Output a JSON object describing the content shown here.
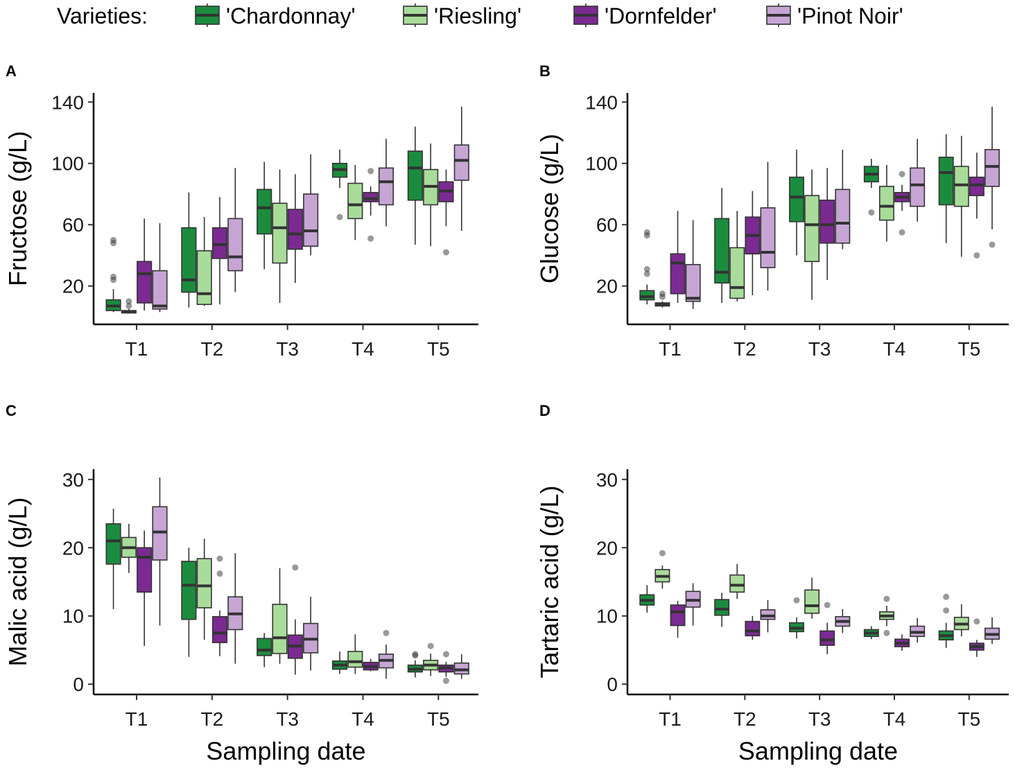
{
  "legend": {
    "title": "Varieties:",
    "items": [
      {
        "label": "'Chardonnay'",
        "color": "#1b8c3e"
      },
      {
        "label": "'Riesling'",
        "color": "#a9dc9b"
      },
      {
        "label": "'Dornfelder'",
        "color": "#7b2a92"
      },
      {
        "label": "'Pinot Noir'",
        "color": "#c6a5d4"
      }
    ]
  },
  "chart_data": [
    {
      "type": "boxplot",
      "panel": "A",
      "ylabel": "Fructose (g/L)",
      "xlabel": "",
      "ylim": [
        -5,
        146
      ],
      "yticks": [
        20,
        60,
        100,
        140
      ],
      "categories": [
        "T1",
        "T2",
        "T3",
        "T4",
        "T5"
      ],
      "series": [
        {
          "name": "'Chardonnay'",
          "boxes": [
            {
              "min": 3,
              "q1": 4,
              "median": 7,
              "q3": 11,
              "max": 18,
              "outliers": [
                24,
                26,
                48,
                50
              ]
            },
            {
              "min": 6,
              "q1": 16,
              "median": 24,
              "q3": 58,
              "max": 81,
              "outliers": []
            },
            {
              "min": 31,
              "q1": 54,
              "median": 71,
              "q3": 83,
              "max": 101,
              "outliers": []
            },
            {
              "min": 84,
              "q1": 91,
              "median": 96,
              "q3": 100,
              "max": 109,
              "outliers": [
                65
              ]
            },
            {
              "min": 47,
              "q1": 76,
              "median": 97,
              "q3": 108,
              "max": 124,
              "outliers": []
            }
          ]
        },
        {
          "name": "'Riesling'",
          "boxes": [
            {
              "min": 2,
              "q1": 2.5,
              "median": 3,
              "q3": 4,
              "max": 5,
              "outliers": [
                7,
                10
              ]
            },
            {
              "min": 7,
              "q1": 8,
              "median": 15,
              "q3": 43,
              "max": 65,
              "outliers": []
            },
            {
              "min": 9,
              "q1": 35,
              "median": 58,
              "q3": 74,
              "max": 96,
              "outliers": []
            },
            {
              "min": 50,
              "q1": 64,
              "median": 73,
              "q3": 87,
              "max": 99,
              "outliers": []
            },
            {
              "min": 46,
              "q1": 73,
              "median": 85,
              "q3": 96,
              "max": 113,
              "outliers": []
            }
          ]
        },
        {
          "name": "'Dornfelder'",
          "boxes": [
            {
              "min": 4,
              "q1": 9,
              "median": 28,
              "q3": 36,
              "max": 64,
              "outliers": []
            },
            {
              "min": 8,
              "q1": 38,
              "median": 47,
              "q3": 58,
              "max": 78,
              "outliers": []
            },
            {
              "min": 22,
              "q1": 44,
              "median": 54,
              "q3": 70,
              "max": 93,
              "outliers": []
            },
            {
              "min": 66,
              "q1": 75,
              "median": 77,
              "q3": 81,
              "max": 85,
              "outliers": [
                51,
                95
              ]
            },
            {
              "min": 59,
              "q1": 75,
              "median": 82,
              "q3": 88,
              "max": 96,
              "outliers": [
                42
              ]
            }
          ]
        },
        {
          "name": "'Pinot Noir'",
          "boxes": [
            {
              "min": 3,
              "q1": 5,
              "median": 7,
              "q3": 30,
              "max": 61,
              "outliers": []
            },
            {
              "min": 16,
              "q1": 30,
              "median": 39,
              "q3": 64,
              "max": 97,
              "outliers": []
            },
            {
              "min": 40,
              "q1": 46,
              "median": 56,
              "q3": 80,
              "max": 106,
              "outliers": []
            },
            {
              "min": 59,
              "q1": 73,
              "median": 88,
              "q3": 97,
              "max": 116,
              "outliers": []
            },
            {
              "min": 56,
              "q1": 89,
              "median": 102,
              "q3": 112,
              "max": 137,
              "outliers": []
            }
          ]
        }
      ]
    },
    {
      "type": "boxplot",
      "panel": "B",
      "ylabel": "Glucose (g/L)",
      "xlabel": "",
      "ylim": [
        -5,
        146
      ],
      "yticks": [
        20,
        60,
        100,
        140
      ],
      "categories": [
        "T1",
        "T2",
        "T3",
        "T4",
        "T5"
      ],
      "series": [
        {
          "name": "'Chardonnay'",
          "boxes": [
            {
              "min": 8,
              "q1": 11,
              "median": 13,
              "q3": 17,
              "max": 21,
              "outliers": [
                28,
                31,
                53,
                55
              ]
            },
            {
              "min": 9,
              "q1": 22,
              "median": 29,
              "q3": 64,
              "max": 84,
              "outliers": []
            },
            {
              "min": 40,
              "q1": 62,
              "median": 78,
              "q3": 91,
              "max": 109,
              "outliers": []
            },
            {
              "min": 84,
              "q1": 88,
              "median": 93,
              "q3": 98,
              "max": 103,
              "outliers": [
                68
              ]
            },
            {
              "min": 48,
              "q1": 73,
              "median": 94,
              "q3": 104,
              "max": 119,
              "outliers": []
            }
          ]
        },
        {
          "name": "'Riesling'",
          "boxes": [
            {
              "min": 6,
              "q1": 7,
              "median": 8,
              "q3": 9,
              "max": 10,
              "outliers": [
                13,
                15
              ]
            },
            {
              "min": 10,
              "q1": 12,
              "median": 19,
              "q3": 45,
              "max": 69,
              "outliers": []
            },
            {
              "min": 11,
              "q1": 36,
              "median": 60,
              "q3": 79,
              "max": 96,
              "outliers": []
            },
            {
              "min": 49,
              "q1": 63,
              "median": 72,
              "q3": 85,
              "max": 99,
              "outliers": []
            },
            {
              "min": 39,
              "q1": 72,
              "median": 86,
              "q3": 98,
              "max": 118,
              "outliers": []
            }
          ]
        },
        {
          "name": "'Dornfelder'",
          "boxes": [
            {
              "min": 9,
              "q1": 15,
              "median": 35,
              "q3": 41,
              "max": 69,
              "outliers": []
            },
            {
              "min": 14,
              "q1": 41,
              "median": 53,
              "q3": 65,
              "max": 82,
              "outliers": []
            },
            {
              "min": 24,
              "q1": 48,
              "median": 60,
              "q3": 76,
              "max": 97,
              "outliers": []
            },
            {
              "min": 69,
              "q1": 75,
              "median": 78,
              "q3": 81,
              "max": 86,
              "outliers": [
                55,
                93
              ]
            },
            {
              "min": 64,
              "q1": 79,
              "median": 86,
              "q3": 91,
              "max": 107,
              "outliers": [
                40
              ]
            }
          ]
        },
        {
          "name": "'Pinot Noir'",
          "boxes": [
            {
              "min": 5,
              "q1": 10,
              "median": 12,
              "q3": 34,
              "max": 63,
              "outliers": []
            },
            {
              "min": 17,
              "q1": 32,
              "median": 42,
              "q3": 71,
              "max": 101,
              "outliers": []
            },
            {
              "min": 44,
              "q1": 48,
              "median": 61,
              "q3": 83,
              "max": 109,
              "outliers": []
            },
            {
              "min": 62,
              "q1": 72,
              "median": 86,
              "q3": 97,
              "max": 116,
              "outliers": []
            },
            {
              "min": 57,
              "q1": 85,
              "median": 98,
              "q3": 109,
              "max": 137,
              "outliers": [
                47
              ]
            }
          ]
        }
      ]
    },
    {
      "type": "boxplot",
      "panel": "C",
      "ylabel": "Malic acid (g/L)",
      "xlabel": "Sampling date",
      "ylim": [
        -1.5,
        31.5
      ],
      "yticks": [
        0,
        10,
        20,
        30
      ],
      "categories": [
        "T1",
        "T2",
        "T3",
        "T4",
        "T5"
      ],
      "series": [
        {
          "name": "'Chardonnay'",
          "boxes": [
            {
              "min": 11,
              "q1": 17.6,
              "median": 21,
              "q3": 23.5,
              "max": 25.7,
              "outliers": []
            },
            {
              "min": 4,
              "q1": 9.5,
              "median": 14.5,
              "q3": 18,
              "max": 20,
              "outliers": []
            },
            {
              "min": 2.5,
              "q1": 4.2,
              "median": 5,
              "q3": 6.7,
              "max": 7.5,
              "outliers": []
            },
            {
              "min": 1.5,
              "q1": 2.2,
              "median": 2.8,
              "q3": 3.4,
              "max": 4.8,
              "outliers": []
            },
            {
              "min": 1,
              "q1": 1.8,
              "median": 2.2,
              "q3": 2.8,
              "max": 3.5,
              "outliers": [
                4.2,
                4.4
              ]
            }
          ]
        },
        {
          "name": "'Riesling'",
          "boxes": [
            {
              "min": 16.3,
              "q1": 18.6,
              "median": 20,
              "q3": 21.5,
              "max": 23.5,
              "outliers": []
            },
            {
              "min": 6.5,
              "q1": 11.2,
              "median": 14.4,
              "q3": 18.4,
              "max": 21.3,
              "outliers": []
            },
            {
              "min": 3,
              "q1": 4.5,
              "median": 6.8,
              "q3": 11.7,
              "max": 17,
              "outliers": []
            },
            {
              "min": 1.5,
              "q1": 2.5,
              "median": 3.3,
              "q3": 4.8,
              "max": 7.3,
              "outliers": []
            },
            {
              "min": 1.2,
              "q1": 2.1,
              "median": 2.8,
              "q3": 3.5,
              "max": 4.5,
              "outliers": [
                5.6
              ]
            }
          ]
        },
        {
          "name": "'Dornfelder'",
          "boxes": [
            {
              "min": 5.6,
              "q1": 13.5,
              "median": 18.6,
              "q3": 20,
              "max": 22.5,
              "outliers": []
            },
            {
              "min": 4.1,
              "q1": 6.1,
              "median": 7.5,
              "q3": 9.9,
              "max": 10.8,
              "outliers": [
                16.2,
                18.4
              ]
            },
            {
              "min": 1.4,
              "q1": 3.8,
              "median": 5.6,
              "q3": 7.2,
              "max": 9.5,
              "outliers": [
                17.1
              ]
            },
            {
              "min": 1.9,
              "q1": 2.1,
              "median": 2.6,
              "q3": 3.2,
              "max": 3.7,
              "outliers": []
            },
            {
              "min": 1.1,
              "q1": 1.8,
              "median": 2.4,
              "q3": 2.8,
              "max": 3.3,
              "outliers": [
                0.5,
                4.4
              ]
            }
          ]
        },
        {
          "name": "'Pinot Noir'",
          "boxes": [
            {
              "min": 8.6,
              "q1": 18.2,
              "median": 22.3,
              "q3": 26,
              "max": 30.3,
              "outliers": []
            },
            {
              "min": 3,
              "q1": 8,
              "median": 10.3,
              "q3": 12.8,
              "max": 19.2,
              "outliers": []
            },
            {
              "min": 2,
              "q1": 4.6,
              "median": 6.6,
              "q3": 8.9,
              "max": 12.8,
              "outliers": []
            },
            {
              "min": 0.8,
              "q1": 2.4,
              "median": 3.5,
              "q3": 4.4,
              "max": 5.8,
              "outliers": [
                7.5
              ]
            },
            {
              "min": 0.8,
              "q1": 1.5,
              "median": 2.1,
              "q3": 3.1,
              "max": 4.4,
              "outliers": []
            }
          ]
        }
      ]
    },
    {
      "type": "boxplot",
      "panel": "D",
      "ylabel": "Tartaric acid (g/L)",
      "xlabel": "Sampling date",
      "ylim": [
        -1.5,
        31.5
      ],
      "yticks": [
        0,
        10,
        20,
        30
      ],
      "categories": [
        "T1",
        "T2",
        "T3",
        "T4",
        "T5"
      ],
      "series": [
        {
          "name": "'Chardonnay'",
          "boxes": [
            {
              "min": 10.5,
              "q1": 11.6,
              "median": 12.3,
              "q3": 13.1,
              "max": 14.5,
              "outliers": []
            },
            {
              "min": 8.4,
              "q1": 10.1,
              "median": 11,
              "q3": 12.4,
              "max": 13.4,
              "outliers": []
            },
            {
              "min": 6.7,
              "q1": 7.7,
              "median": 8.2,
              "q3": 9,
              "max": 9.8,
              "outliers": [
                12.3
              ]
            },
            {
              "min": 6.6,
              "q1": 7,
              "median": 7.5,
              "q3": 8,
              "max": 8.5,
              "outliers": []
            },
            {
              "min": 5.3,
              "q1": 6.5,
              "median": 7.1,
              "q3": 7.8,
              "max": 9,
              "outliers": [
                10.8,
                12.8
              ]
            }
          ]
        },
        {
          "name": "'Riesling'",
          "boxes": [
            {
              "min": 14,
              "q1": 15,
              "median": 15.8,
              "q3": 16.8,
              "max": 17.4,
              "outliers": [
                19.2
              ]
            },
            {
              "min": 12.5,
              "q1": 13.5,
              "median": 14.5,
              "q3": 16,
              "max": 17.6,
              "outliers": []
            },
            {
              "min": 9.6,
              "q1": 10.4,
              "median": 11.5,
              "q3": 13.8,
              "max": 15.6,
              "outliers": []
            },
            {
              "min": 8.5,
              "q1": 9.5,
              "median": 10,
              "q3": 10.6,
              "max": 11.5,
              "outliers": [
                7.5,
                12.5
              ]
            },
            {
              "min": 7,
              "q1": 8,
              "median": 8.8,
              "q3": 9.8,
              "max": 11.7,
              "outliers": []
            }
          ]
        },
        {
          "name": "'Dornfelder'",
          "boxes": [
            {
              "min": 6.8,
              "q1": 8.6,
              "median": 10.6,
              "q3": 11.6,
              "max": 12.2,
              "outliers": []
            },
            {
              "min": 6.5,
              "q1": 7.1,
              "median": 7.8,
              "q3": 9.2,
              "max": 10,
              "outliers": []
            },
            {
              "min": 4.4,
              "q1": 5.7,
              "median": 6.5,
              "q3": 7.8,
              "max": 9,
              "outliers": [
                11.6
              ]
            },
            {
              "min": 4.9,
              "q1": 5.5,
              "median": 6,
              "q3": 6.6,
              "max": 7.3,
              "outliers": []
            },
            {
              "min": 4,
              "q1": 5,
              "median": 5.5,
              "q3": 6,
              "max": 6.5,
              "outliers": [
                9.2
              ]
            }
          ]
        },
        {
          "name": "'Pinot Noir'",
          "boxes": [
            {
              "min": 8.6,
              "q1": 11.3,
              "median": 12.3,
              "q3": 13.6,
              "max": 14.8,
              "outliers": []
            },
            {
              "min": 7.6,
              "q1": 9.5,
              "median": 10,
              "q3": 10.9,
              "max": 12.3,
              "outliers": []
            },
            {
              "min": 7.5,
              "q1": 8.5,
              "median": 9.2,
              "q3": 9.9,
              "max": 11,
              "outliers": []
            },
            {
              "min": 6.1,
              "q1": 7,
              "median": 7.6,
              "q3": 8.5,
              "max": 9.7,
              "outliers": []
            },
            {
              "min": 5.9,
              "q1": 6.6,
              "median": 7.3,
              "q3": 8.2,
              "max": 9.8,
              "outliers": []
            }
          ]
        }
      ]
    }
  ]
}
